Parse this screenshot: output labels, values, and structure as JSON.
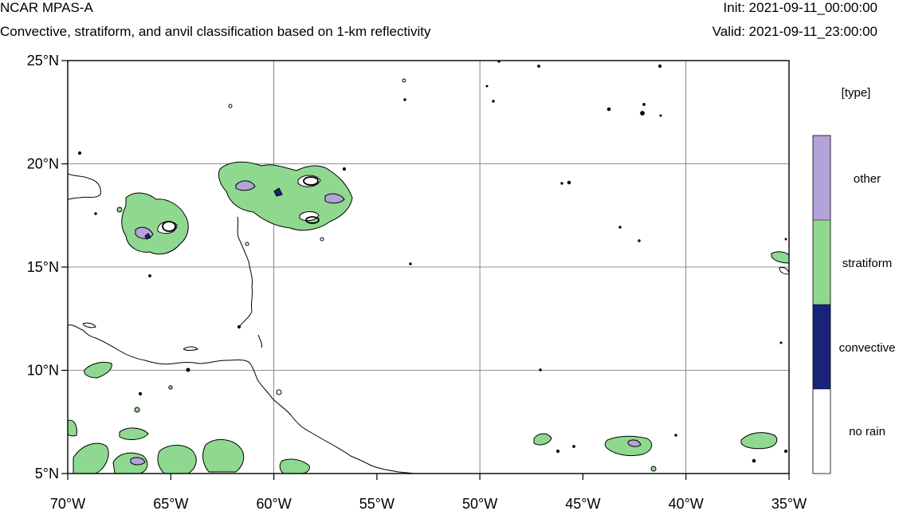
{
  "header": {
    "model": "NCAR MPAS-A",
    "description": "Convective, stratiform, and anvil classification based on 1-km reflectivity",
    "init_label": "Init:",
    "init_value": "2021-09-11_00:00:00",
    "valid_label": "Valid:",
    "valid_value": "2021-09-11_23:00:00"
  },
  "map": {
    "lon_range": [
      -70,
      -35
    ],
    "lat_range": [
      5,
      25
    ],
    "x_ticks": [
      "70°W",
      "65°W",
      "60°W",
      "55°W",
      "50°W",
      "45°W",
      "40°W",
      "35°W"
    ],
    "y_ticks": [
      "25°N",
      "20°N",
      "15°N",
      "10°N",
      "5°N"
    ],
    "grid": true
  },
  "legend": {
    "title": "[type]",
    "items": [
      {
        "label": "other",
        "color": "#b3a3da"
      },
      {
        "label": "stratiform",
        "color": "#8fd88f"
      },
      {
        "label": "convective",
        "color": "#1a237a"
      },
      {
        "label": "no rain",
        "color": "#ffffff"
      }
    ]
  }
}
